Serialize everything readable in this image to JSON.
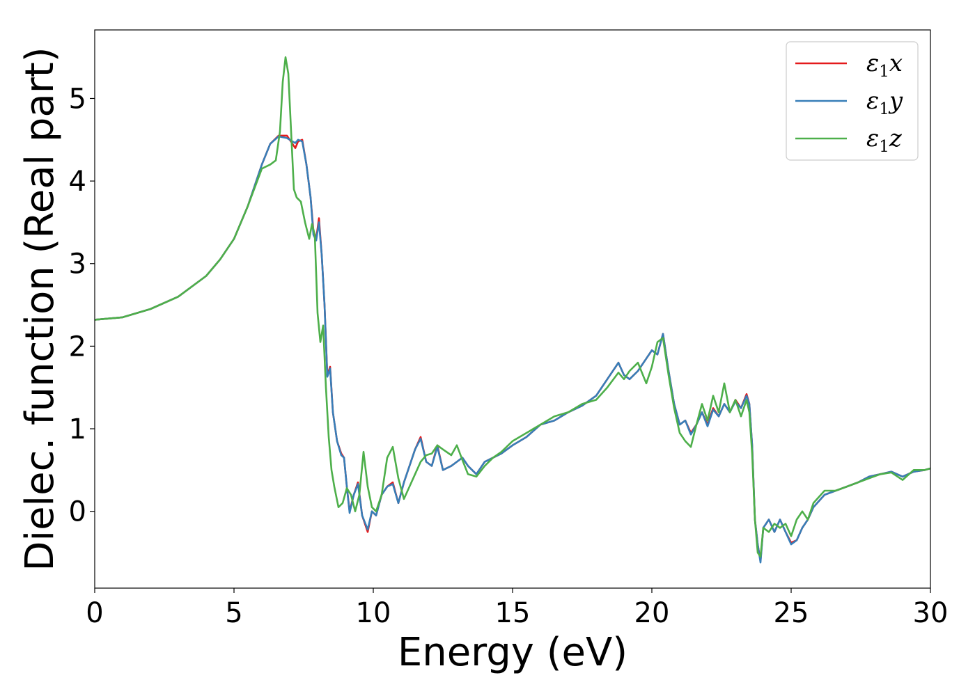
{
  "chart_data": {
    "type": "line",
    "title": "",
    "xlabel": "Energy (eV)",
    "ylabel": "Dielec. function (Real part)",
    "xlim": [
      0,
      30
    ],
    "ylim": [
      -0.93,
      5.83
    ],
    "xticks": [
      0,
      5,
      10,
      15,
      20,
      25,
      30
    ],
    "xtick_labels": [
      "0",
      "5",
      "10",
      "15",
      "20",
      "25",
      "30"
    ],
    "yticks": [
      0,
      1,
      2,
      3,
      4,
      5
    ],
    "ytick_labels": [
      "0",
      "1",
      "2",
      "3",
      "4",
      "5"
    ],
    "grid": false,
    "legend_position": "top-right",
    "series": [
      {
        "name": "ε1x",
        "name_main": "ε",
        "name_sub": "1",
        "name_tail": "x",
        "color": "#e41a1c",
        "x": [
          0,
          1,
          2,
          3,
          4,
          4.5,
          5,
          5.5,
          6,
          6.3,
          6.6,
          6.9,
          7.0,
          7.1,
          7.2,
          7.3,
          7.45,
          7.6,
          7.75,
          7.85,
          7.95,
          8.05,
          8.15,
          8.25,
          8.35,
          8.45,
          8.55,
          8.7,
          8.85,
          8.95,
          9.05,
          9.15,
          9.3,
          9.45,
          9.6,
          9.8,
          9.95,
          10.1,
          10.3,
          10.5,
          10.7,
          10.9,
          11.1,
          11.3,
          11.5,
          11.7,
          11.9,
          12.1,
          12.3,
          12.5,
          12.8,
          13.0,
          13.2,
          13.4,
          13.7,
          14.0,
          14.3,
          14.6,
          15,
          15.5,
          16,
          16.5,
          17,
          17.5,
          18,
          18.4,
          18.8,
          19.0,
          19.2,
          19.5,
          19.8,
          20.0,
          20.2,
          20.4,
          20.6,
          20.8,
          21.0,
          21.2,
          21.4,
          21.6,
          21.8,
          22.0,
          22.2,
          22.4,
          22.6,
          22.8,
          23.0,
          23.2,
          23.4,
          23.5,
          23.6,
          23.7,
          23.8,
          23.9,
          24.0,
          24.2,
          24.4,
          24.6,
          24.8,
          25.0,
          25.2,
          25.4,
          25.6,
          25.8,
          26.2,
          26.6,
          27,
          27.4,
          27.8,
          28.2,
          28.6,
          29,
          29.4,
          29.8,
          30
        ],
        "y": [
          2.32,
          2.35,
          2.45,
          2.6,
          2.85,
          3.05,
          3.3,
          3.7,
          4.2,
          4.45,
          4.55,
          4.55,
          4.5,
          4.45,
          4.4,
          4.48,
          4.5,
          4.2,
          3.8,
          3.4,
          3.3,
          3.55,
          3.1,
          2.5,
          1.65,
          1.75,
          1.2,
          0.85,
          0.7,
          0.65,
          0.3,
          0.0,
          0.2,
          0.35,
          -0.05,
          -0.25,
          0.0,
          -0.05,
          0.2,
          0.3,
          0.35,
          0.1,
          0.35,
          0.55,
          0.75,
          0.9,
          0.6,
          0.55,
          0.8,
          0.5,
          0.55,
          0.6,
          0.65,
          0.55,
          0.45,
          0.6,
          0.65,
          0.7,
          0.8,
          0.9,
          1.05,
          1.1,
          1.2,
          1.28,
          1.4,
          1.6,
          1.8,
          1.65,
          1.6,
          1.7,
          1.85,
          1.95,
          1.9,
          2.15,
          1.7,
          1.3,
          1.05,
          1.1,
          0.95,
          1.05,
          1.2,
          1.05,
          1.25,
          1.15,
          1.3,
          1.2,
          1.35,
          1.25,
          1.42,
          1.3,
          0.8,
          -0.1,
          -0.4,
          -0.6,
          -0.2,
          -0.1,
          -0.25,
          -0.1,
          -0.25,
          -0.38,
          -0.35,
          -0.2,
          -0.1,
          0.05,
          0.2,
          0.25,
          0.3,
          0.35,
          0.42,
          0.45,
          0.48,
          0.42,
          0.48,
          0.5,
          0.52
        ]
      },
      {
        "name": "ε1y",
        "name_main": "ε",
        "name_sub": "1",
        "name_tail": "y",
        "color": "#377eb8",
        "x": [
          0,
          1,
          2,
          3,
          4,
          4.5,
          5,
          5.5,
          6,
          6.3,
          6.6,
          6.9,
          7.0,
          7.1,
          7.2,
          7.3,
          7.45,
          7.6,
          7.75,
          7.85,
          7.95,
          8.05,
          8.15,
          8.25,
          8.35,
          8.45,
          8.55,
          8.7,
          8.85,
          8.95,
          9.05,
          9.15,
          9.3,
          9.45,
          9.6,
          9.8,
          9.95,
          10.1,
          10.3,
          10.5,
          10.7,
          10.9,
          11.1,
          11.3,
          11.5,
          11.7,
          11.9,
          12.1,
          12.3,
          12.5,
          12.8,
          13.0,
          13.2,
          13.4,
          13.7,
          14.0,
          14.3,
          14.6,
          15,
          15.5,
          16,
          16.5,
          17,
          17.5,
          18,
          18.4,
          18.8,
          19.0,
          19.2,
          19.5,
          19.8,
          20.0,
          20.2,
          20.4,
          20.6,
          20.8,
          21.0,
          21.2,
          21.4,
          21.6,
          21.8,
          22.0,
          22.2,
          22.4,
          22.6,
          22.8,
          23.0,
          23.2,
          23.4,
          23.5,
          23.6,
          23.7,
          23.8,
          23.9,
          24.0,
          24.2,
          24.4,
          24.6,
          24.8,
          25.0,
          25.2,
          25.4,
          25.6,
          25.8,
          26.2,
          26.6,
          27,
          27.4,
          27.8,
          28.2,
          28.6,
          29,
          29.4,
          29.8,
          30
        ],
        "y": [
          2.32,
          2.35,
          2.45,
          2.6,
          2.85,
          3.05,
          3.3,
          3.7,
          4.2,
          4.45,
          4.54,
          4.52,
          4.5,
          4.48,
          4.46,
          4.5,
          4.48,
          4.2,
          3.8,
          3.35,
          3.28,
          3.5,
          3.1,
          2.5,
          1.63,
          1.73,
          1.2,
          0.85,
          0.68,
          0.65,
          0.3,
          -0.02,
          0.2,
          0.33,
          -0.05,
          -0.22,
          0.0,
          -0.05,
          0.2,
          0.3,
          0.33,
          0.1,
          0.35,
          0.55,
          0.75,
          0.88,
          0.6,
          0.55,
          0.78,
          0.5,
          0.55,
          0.6,
          0.65,
          0.55,
          0.45,
          0.6,
          0.65,
          0.7,
          0.8,
          0.9,
          1.05,
          1.1,
          1.2,
          1.28,
          1.4,
          1.6,
          1.8,
          1.65,
          1.6,
          1.7,
          1.85,
          1.95,
          1.9,
          2.15,
          1.7,
          1.3,
          1.05,
          1.1,
          0.93,
          1.05,
          1.2,
          1.03,
          1.23,
          1.15,
          1.3,
          1.2,
          1.33,
          1.25,
          1.4,
          1.3,
          0.8,
          -0.1,
          -0.4,
          -0.62,
          -0.2,
          -0.1,
          -0.25,
          -0.1,
          -0.25,
          -0.4,
          -0.35,
          -0.2,
          -0.1,
          0.05,
          0.2,
          0.25,
          0.3,
          0.35,
          0.42,
          0.45,
          0.48,
          0.42,
          0.48,
          0.5,
          0.52
        ]
      },
      {
        "name": "ε1z",
        "name_main": "ε",
        "name_sub": "1",
        "name_tail": "z",
        "color": "#4daf4a",
        "x": [
          0,
          1,
          2,
          3,
          4,
          4.5,
          5,
          5.5,
          6,
          6.3,
          6.5,
          6.65,
          6.75,
          6.85,
          6.95,
          7.05,
          7.15,
          7.25,
          7.4,
          7.55,
          7.7,
          7.8,
          7.9,
          8.0,
          8.1,
          8.2,
          8.3,
          8.4,
          8.5,
          8.6,
          8.75,
          8.9,
          9.05,
          9.2,
          9.35,
          9.5,
          9.65,
          9.8,
          9.95,
          10.1,
          10.3,
          10.5,
          10.7,
          10.9,
          11.1,
          11.3,
          11.5,
          11.7,
          11.9,
          12.1,
          12.3,
          12.5,
          12.8,
          13.0,
          13.2,
          13.4,
          13.7,
          14.0,
          14.3,
          14.6,
          15,
          15.5,
          16,
          16.5,
          17,
          17.5,
          18,
          18.4,
          18.8,
          19.0,
          19.2,
          19.5,
          19.8,
          20.0,
          20.2,
          20.4,
          20.6,
          20.8,
          21.0,
          21.2,
          21.4,
          21.6,
          21.8,
          22.0,
          22.2,
          22.4,
          22.6,
          22.8,
          23.0,
          23.2,
          23.4,
          23.5,
          23.6,
          23.7,
          23.8,
          23.9,
          24.0,
          24.2,
          24.4,
          24.6,
          24.8,
          25.0,
          25.2,
          25.4,
          25.6,
          25.8,
          26.2,
          26.6,
          27,
          27.4,
          27.8,
          28.2,
          28.6,
          29,
          29.4,
          29.8,
          30
        ],
        "y": [
          2.32,
          2.35,
          2.45,
          2.6,
          2.85,
          3.05,
          3.3,
          3.7,
          4.15,
          4.2,
          4.25,
          4.6,
          5.2,
          5.5,
          5.3,
          4.6,
          3.9,
          3.8,
          3.75,
          3.5,
          3.3,
          3.48,
          3.35,
          2.4,
          2.05,
          2.25,
          1.5,
          0.9,
          0.5,
          0.3,
          0.05,
          0.1,
          0.28,
          0.2,
          0.0,
          0.2,
          0.72,
          0.3,
          0.05,
          0.0,
          0.2,
          0.65,
          0.78,
          0.4,
          0.15,
          0.3,
          0.45,
          0.6,
          0.68,
          0.7,
          0.8,
          0.75,
          0.68,
          0.8,
          0.62,
          0.45,
          0.42,
          0.55,
          0.65,
          0.72,
          0.85,
          0.95,
          1.05,
          1.15,
          1.2,
          1.3,
          1.35,
          1.5,
          1.68,
          1.6,
          1.7,
          1.8,
          1.55,
          1.75,
          2.05,
          2.1,
          1.65,
          1.25,
          0.95,
          0.85,
          0.78,
          1.05,
          1.3,
          1.1,
          1.4,
          1.2,
          1.55,
          1.2,
          1.35,
          1.15,
          1.35,
          1.2,
          0.7,
          -0.1,
          -0.5,
          -0.55,
          -0.2,
          -0.25,
          -0.15,
          -0.2,
          -0.15,
          -0.3,
          -0.1,
          0.0,
          -0.1,
          0.1,
          0.25,
          0.25,
          0.3,
          0.35,
          0.4,
          0.45,
          0.47,
          0.38,
          0.5,
          0.5,
          0.52
        ]
      }
    ]
  }
}
